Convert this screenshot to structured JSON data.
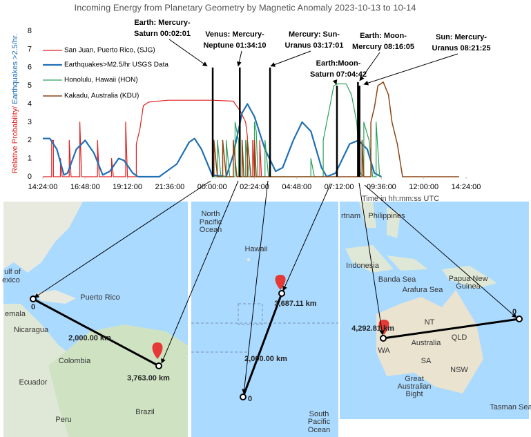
{
  "chart_data": {
    "type": "line",
    "title": "Incoming Energy from Planetary Geometry by Magnetic Anomaly 2023-10-13 to 10-14",
    "ylabel": [
      "Relative Probability/",
      " Earthquakes >2.5/hr."
    ],
    "xlabel": "Time in hh:mm:ss UTC",
    "xlim": [
      14.4,
      38.4
    ],
    "ylim": [
      0,
      8
    ],
    "yticks": [
      0,
      1,
      2,
      3,
      4,
      5,
      6,
      7,
      8
    ],
    "grid": false,
    "legend": "upper left",
    "xticks": [
      {
        "value": 14.4,
        "label": "14:24:00"
      },
      {
        "value": 16.8,
        "label": "16:48:00"
      },
      {
        "value": 19.2,
        "label": "19:12:00"
      },
      {
        "value": 21.6,
        "label": "21:36:00"
      },
      {
        "value": 24,
        "label": "00:00:00"
      },
      {
        "value": 26.4,
        "label": "02:24:00"
      },
      {
        "value": 28.8,
        "label": "04:48:00"
      },
      {
        "value": 31.2,
        "label": "07:12:00"
      },
      {
        "value": 33.6,
        "label": "09:36:00"
      },
      {
        "value": 36,
        "label": "12:00:00"
      },
      {
        "value": 38.4,
        "label": "14:24:00"
      }
    ],
    "series": [
      {
        "name": "San Juan, Puerto Rico, (SJG)",
        "color": "#e02020",
        "width": 1.2,
        "x": [
          14.4,
          14.9,
          14.9,
          15.0,
          15.0,
          15.4,
          15.4,
          15.5,
          15.9,
          15.9,
          16.0,
          16.5,
          16.5,
          16.6,
          17.5,
          17.5,
          17.6,
          18.3,
          18.3,
          18.4,
          19.1,
          19.1,
          19.2,
          19.7,
          19.7,
          19.9,
          20.1,
          20.4,
          21.5,
          24.0,
          25.2,
          25.6,
          25.9,
          26.0,
          26.0,
          26.3,
          26.3,
          26.4,
          26.7,
          26.7,
          26.8
        ],
        "values": [
          0,
          0,
          2,
          2,
          0,
          0,
          1,
          0,
          0,
          2,
          0,
          0,
          3,
          0,
          0,
          2,
          0,
          0,
          1,
          0,
          0,
          3,
          0,
          0,
          1.8,
          2.6,
          3.9,
          4.1,
          4.2,
          4.2,
          4.15,
          3.6,
          3.0,
          2.2,
          0,
          0,
          2,
          0,
          0,
          2,
          0
        ]
      },
      {
        "name": "Earthquakes>M2.5/hr USGS Data",
        "color": "#1f6fb5",
        "width": 2.2,
        "x": [
          14.4,
          14.8,
          15.2,
          15.6,
          15.8,
          16.3,
          16.8,
          17.3,
          17.8,
          18.2,
          18.7,
          19.0,
          19.5,
          19.8,
          21.0,
          22.0,
          22.7,
          23.0,
          23.4,
          24.0,
          24.8,
          25.2,
          25.7,
          26.0,
          26.4,
          27.0,
          27.6,
          28.0,
          28.6,
          29.1,
          29.6,
          30.2,
          30.5,
          31.0,
          31.8,
          32.3,
          32.8,
          33.2,
          33.6
        ],
        "values": [
          2.1,
          2.1,
          1.5,
          0.1,
          0.2,
          1.5,
          2.0,
          1.3,
          0.1,
          0.3,
          1.0,
          0.9,
          0.2,
          0,
          0,
          0.7,
          1.9,
          2.1,
          1.5,
          0.1,
          0,
          1.2,
          3.5,
          4.0,
          3.3,
          1.5,
          0.3,
          0.5,
          2.0,
          3.0,
          2.5,
          0.5,
          0,
          0.2,
          1.8,
          2.0,
          1.5,
          0.2,
          0
        ]
      },
      {
        "name": "Honolulu, Hawaii (HON)",
        "color": "#2ca05a",
        "width": 1.2,
        "x": [
          24.0,
          24.3,
          24.3,
          24.5,
          24.8,
          24.8,
          25.0,
          25.3,
          25.3,
          25.5,
          25.5,
          25.9,
          25.9,
          26.1,
          26.4,
          26.4,
          26.5,
          26.6,
          27.0,
          27.0,
          27.2,
          29.6,
          29.6,
          29.8,
          30.3,
          30.3,
          30.6,
          30.9,
          31.1,
          31.6,
          31.9,
          32.2,
          32.4,
          32.6,
          32.6,
          32.9,
          33.1,
          33.3,
          33.3,
          33.5
        ],
        "values": [
          0,
          0,
          2,
          0,
          0,
          2,
          0,
          0,
          3,
          2,
          0,
          0,
          2,
          0,
          0,
          3,
          2.5,
          0,
          0,
          2,
          0,
          0,
          1,
          0,
          0,
          2,
          3.5,
          5.0,
          5.1,
          5.1,
          4.5,
          3.0,
          0.2,
          0,
          3,
          2,
          0,
          0,
          3,
          0
        ]
      },
      {
        "name": "Kakadu, Australia (KDU)",
        "color": "#8b4513",
        "width": 1.5,
        "x": [
          24.1,
          24.1,
          24.3,
          24.6,
          24.6,
          24.8,
          25.2,
          25.2,
          25.4,
          25.7,
          25.7,
          25.8,
          26.0,
          26.0,
          26.2,
          26.4,
          26.4,
          26.5,
          32.5,
          32.5,
          32.6,
          33.0,
          33.0,
          33.2,
          33.4,
          33.7,
          34.0,
          34.2,
          34.5,
          34.8,
          38.0
        ],
        "values": [
          0,
          2,
          0,
          0,
          2,
          0,
          0,
          2,
          0,
          0,
          2,
          0,
          0,
          2,
          0,
          0,
          2,
          0,
          0,
          2,
          0,
          0,
          3,
          3.8,
          5.0,
          5.2,
          4.5,
          3.0,
          1.8,
          0,
          0
        ]
      }
    ],
    "annotations": [
      {
        "lines": [
          "Earth: Mercury-",
          "Saturn 00:02:01"
        ],
        "x": 24.0336,
        "y": 6
      },
      {
        "lines": [
          "Venus: Mercury-",
          "Neptune 01:34:10"
        ],
        "x": 25.5694,
        "y": 6
      },
      {
        "lines": [
          "Mercury: Sun-",
          "Uranus 03:17:01"
        ],
        "x": 27.2836,
        "y": 6
      },
      {
        "lines": [
          "Earth:Moon-",
          "Saturn 07:04:42"
        ],
        "x": 31.0783,
        "y": 5
      },
      {
        "lines": [
          "Earth: Moon-",
          "Mercury 08:16:05"
        ],
        "x": 32.2681,
        "y": 5.2
      },
      {
        "lines": [
          "Sun: Mercury-",
          "Uranus 08:21:25"
        ],
        "x": 32.3569,
        "y": 5
      }
    ]
  },
  "maps": [
    {
      "labels": [
        "Puerto Rico",
        "Nicaragua",
        "emala",
        "Colombia",
        "Ecuador",
        "Peru",
        "Brazil",
        "ulf of",
        "exico",
        "2,000.00 km",
        "3,763.00 km",
        "0"
      ]
    },
    {
      "labels": [
        "North",
        "Pacific",
        "Ocean",
        "Hawaii",
        "3,687.11 km",
        "2,000.00 km",
        "0",
        "South",
        "Pacific",
        "Ocean"
      ]
    },
    {
      "labels": [
        "rtnam",
        "Philippines",
        "Indonesia",
        "Banda Sea",
        "Arafura Sea",
        "Papua New",
        "Guinea",
        "4,292.81 km",
        "Australia",
        "NT",
        "QLD",
        "WA",
        "SA",
        "NSW",
        "Great",
        "Australian",
        "Bight",
        "Tasman Sea",
        "0"
      ]
    }
  ]
}
